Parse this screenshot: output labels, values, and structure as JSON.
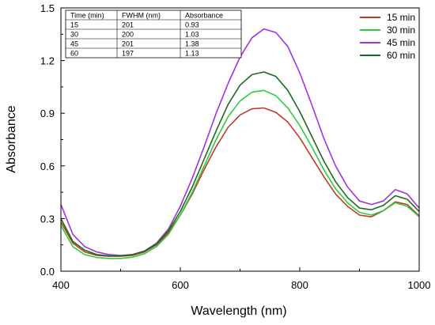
{
  "chart_data": {
    "type": "line",
    "xlabel": "Wavelength (nm)",
    "ylabel": "Absorbance",
    "xlim": [
      400,
      1000
    ],
    "ylim": [
      0.0,
      1.5
    ],
    "x_ticks": [
      "400",
      "600",
      "800",
      "1000"
    ],
    "y_ticks": [
      "0.0",
      "0.3",
      "0.6",
      "0.9",
      "1.2",
      "1.5"
    ],
    "grid": false,
    "legend_position": "top-right",
    "x": [
      400,
      420,
      440,
      460,
      480,
      500,
      520,
      540,
      560,
      580,
      600,
      620,
      640,
      660,
      680,
      700,
      720,
      740,
      760,
      780,
      800,
      820,
      840,
      860,
      880,
      900,
      920,
      940,
      960,
      980,
      1000
    ],
    "series": [
      {
        "name": "15 min",
        "color": "#c0392b",
        "values": [
          0.28,
          0.16,
          0.11,
          0.09,
          0.085,
          0.085,
          0.09,
          0.11,
          0.15,
          0.22,
          0.32,
          0.44,
          0.58,
          0.71,
          0.82,
          0.89,
          0.925,
          0.93,
          0.905,
          0.85,
          0.76,
          0.65,
          0.54,
          0.44,
          0.37,
          0.32,
          0.31,
          0.345,
          0.395,
          0.38,
          0.315
        ]
      },
      {
        "name": "30 min",
        "color": "#2ecc40",
        "values": [
          0.26,
          0.14,
          0.095,
          0.078,
          0.073,
          0.073,
          0.08,
          0.1,
          0.14,
          0.21,
          0.32,
          0.45,
          0.6,
          0.75,
          0.88,
          0.97,
          1.02,
          1.03,
          1.0,
          0.93,
          0.83,
          0.71,
          0.58,
          0.47,
          0.39,
          0.335,
          0.32,
          0.345,
          0.39,
          0.37,
          0.31
        ]
      },
      {
        "name": "45 min",
        "color": "#a033e0",
        "values": [
          0.38,
          0.21,
          0.14,
          0.11,
          0.095,
          0.09,
          0.095,
          0.115,
          0.16,
          0.24,
          0.37,
          0.53,
          0.71,
          0.9,
          1.07,
          1.22,
          1.33,
          1.38,
          1.36,
          1.28,
          1.13,
          0.95,
          0.76,
          0.6,
          0.48,
          0.4,
          0.38,
          0.4,
          0.465,
          0.44,
          0.36
        ]
      },
      {
        "name": "60 min",
        "color": "#1e6b1e",
        "values": [
          0.3,
          0.17,
          0.12,
          0.095,
          0.088,
          0.088,
          0.095,
          0.115,
          0.155,
          0.23,
          0.34,
          0.48,
          0.64,
          0.8,
          0.95,
          1.06,
          1.12,
          1.135,
          1.11,
          1.03,
          0.91,
          0.77,
          0.63,
          0.51,
          0.42,
          0.36,
          0.35,
          0.375,
          0.43,
          0.41,
          0.34
        ]
      }
    ],
    "inset_table": {
      "headers": [
        "Time (min)",
        "FWHM (nm)",
        "Absorbance"
      ],
      "rows": [
        [
          "15",
          "201",
          "0.93"
        ],
        [
          "30",
          "200",
          "1.03"
        ],
        [
          "45",
          "201",
          "1.38"
        ],
        [
          "60",
          "197",
          "1.13"
        ]
      ]
    }
  }
}
